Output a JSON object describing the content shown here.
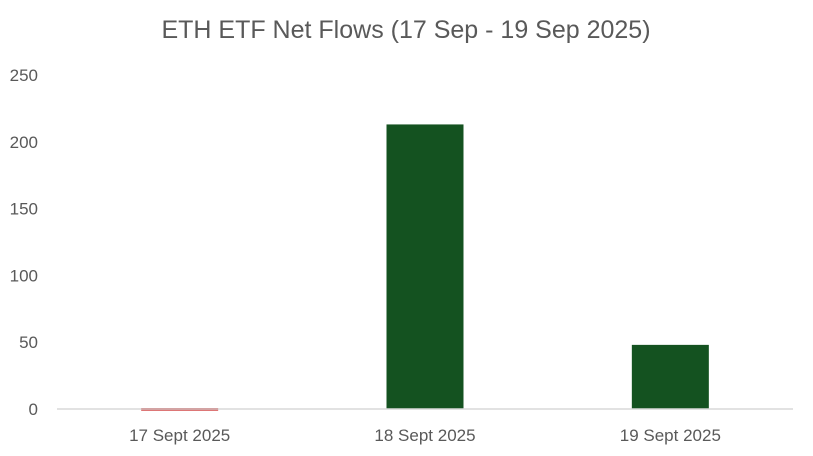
{
  "chart_data": {
    "type": "bar",
    "title": "ETH ETF Net Flows (17 Sep - 19 Sep 2025)",
    "categories": [
      "17 Sept 2025",
      "18 Sept 2025",
      "19 Sept 2025"
    ],
    "values": [
      -1.9,
      213,
      48
    ],
    "xlabel": "",
    "ylabel": "",
    "ylim": [
      0,
      250
    ],
    "yticks": [
      0,
      50,
      100,
      150,
      200,
      250
    ],
    "grid": false,
    "legend": "none",
    "colors": {
      "positive": "#145220",
      "negative": "#c00000",
      "axis": "#d9d9d9",
      "text": "#595959"
    }
  }
}
